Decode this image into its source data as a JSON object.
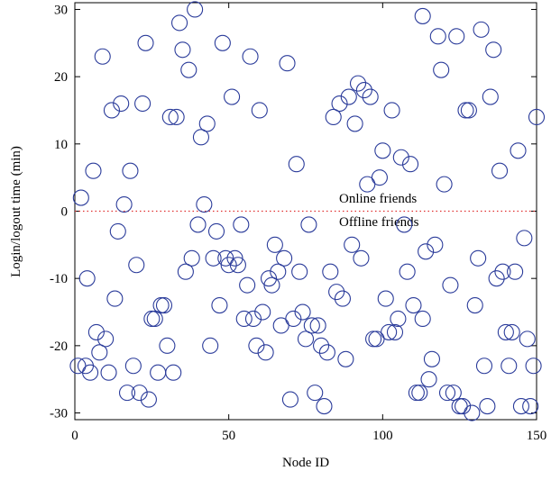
{
  "chart_data": {
    "type": "scatter",
    "x_label": "Node ID",
    "y_label": "Login/logout time (min)",
    "annotations": [
      "Online friends",
      "Offline friends"
    ],
    "reference_line": {
      "y": 0,
      "color": "#e03030"
    },
    "xlim": [
      0,
      150
    ],
    "xticks": [
      0,
      50,
      100,
      150
    ],
    "ylim": [
      -31,
      31
    ],
    "yticks": [
      -30,
      -20,
      -10,
      0,
      10,
      20,
      30
    ],
    "series": [
      {
        "color": "#2a3b9a",
        "x": [
          2,
          6,
          9,
          1,
          3.5,
          4,
          5,
          7,
          8,
          10,
          11,
          12,
          13,
          14,
          15,
          16,
          17,
          18,
          19,
          20,
          21,
          22,
          23,
          24,
          25,
          26,
          27,
          28,
          29,
          30,
          31,
          32,
          33,
          34,
          35,
          36,
          37,
          38,
          39,
          40,
          41,
          42,
          43,
          44,
          45,
          46,
          47,
          48,
          49,
          50,
          51,
          52,
          53,
          54,
          55,
          56,
          57,
          58,
          59,
          60,
          61,
          62,
          63,
          64,
          65,
          66,
          67,
          68,
          69,
          70,
          71,
          72,
          73,
          74,
          75,
          76,
          77,
          78,
          79,
          80,
          81,
          82,
          83,
          84,
          85,
          86,
          87,
          88,
          89,
          90,
          91,
          92,
          93,
          94,
          95,
          96,
          97,
          98,
          99,
          100,
          101,
          102,
          103,
          104,
          105,
          106,
          107,
          108,
          109,
          110,
          111,
          112,
          113,
          113,
          114,
          115,
          116,
          117,
          118,
          119,
          120,
          121,
          122,
          123,
          124,
          125,
          126,
          127,
          128,
          129,
          130,
          131,
          132,
          133,
          134,
          135,
          136,
          137,
          138,
          139,
          140,
          141,
          142,
          143,
          144,
          145,
          146,
          147,
          148,
          149,
          150
        ],
        "values": [
          2,
          6,
          23,
          -23,
          -23,
          -10,
          -24,
          -18,
          -21,
          -19,
          -24,
          15,
          -13,
          -3,
          16,
          1,
          -27,
          6,
          -23,
          -8,
          -27,
          16,
          25,
          -28,
          -16,
          -16,
          -24,
          -14,
          -14,
          -20,
          14,
          -24,
          14,
          28,
          24,
          -9,
          21,
          -7,
          30,
          -2,
          11,
          1,
          13,
          -20,
          -7,
          -3,
          -14,
          25,
          -7,
          -8,
          17,
          -7,
          -8,
          -2,
          -16,
          -11,
          23,
          -16,
          -20,
          15,
          -15,
          -21,
          -10,
          -11,
          -5,
          -9,
          -17,
          -7,
          22,
          -28,
          -16,
          7,
          -9,
          -15,
          -19,
          -2,
          -17,
          -27,
          -17,
          -20,
          -29,
          -21,
          -9,
          14,
          -12,
          16,
          -13,
          -22,
          17,
          -5,
          13,
          19,
          -7,
          18,
          4,
          17,
          -19,
          -19,
          5,
          9,
          -13,
          -18,
          15,
          -18,
          -16,
          8,
          -2,
          -9,
          7,
          -14,
          -27,
          -27,
          -16,
          29,
          -6,
          -25,
          -22,
          -5,
          26,
          21,
          4,
          -27,
          -11,
          -27,
          26,
          -29,
          -29,
          15,
          15,
          -30,
          -14,
          -7,
          27,
          -23,
          -29,
          17,
          24,
          -10,
          6,
          -9,
          -18,
          -23,
          -18,
          -9,
          9,
          -29,
          -4,
          -19,
          -29,
          -23,
          14
        ]
      }
    ]
  }
}
